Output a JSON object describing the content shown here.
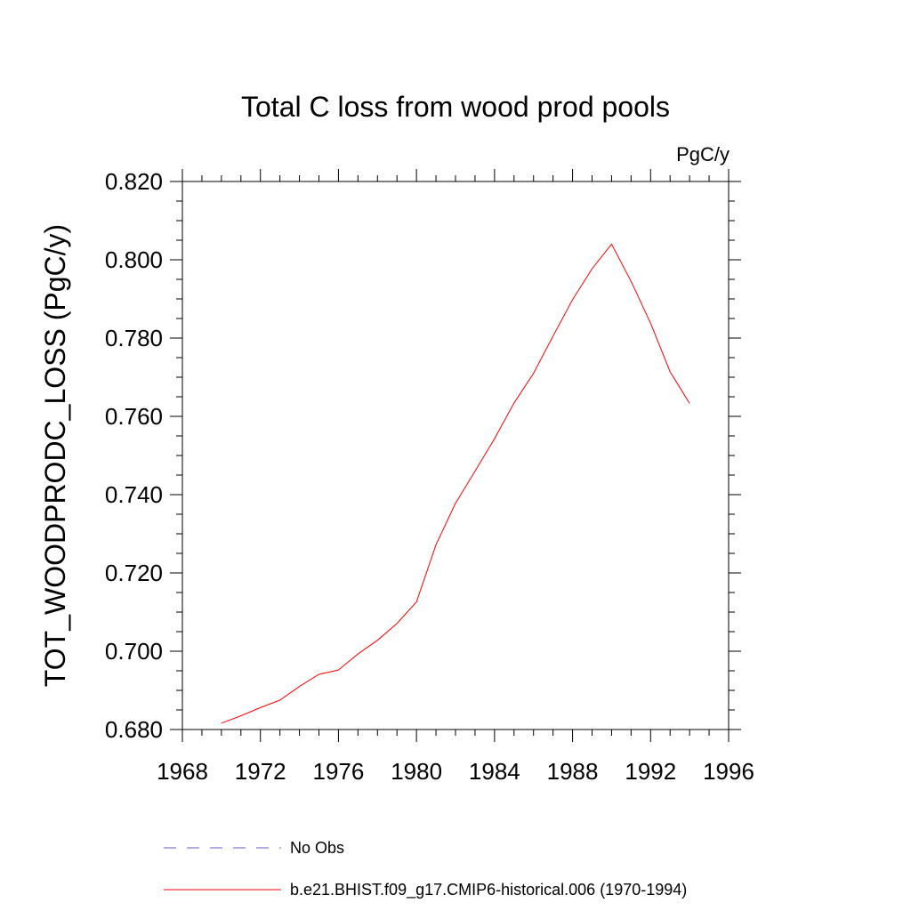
{
  "chart_data": {
    "type": "line",
    "title": "Total C loss from wood prod pools",
    "units": "PgC/y",
    "xlabel": "",
    "ylabel": "TOT_WOODPRODC_LOSS  (PgC/y)",
    "xlim": [
      1968,
      1996
    ],
    "ylim": [
      0.68,
      0.82
    ],
    "xticks": [
      1968,
      1972,
      1976,
      1980,
      1984,
      1988,
      1992,
      1996
    ],
    "xtick_labels": [
      "1968",
      "1972",
      "1976",
      "1980",
      "1984",
      "1988",
      "1992",
      "1996"
    ],
    "yticks": [
      0.68,
      0.7,
      0.72,
      0.74,
      0.76,
      0.78,
      0.8,
      0.82
    ],
    "ytick_labels": [
      "0.680",
      "0.700",
      "0.720",
      "0.740",
      "0.760",
      "0.780",
      "0.800",
      "0.820"
    ],
    "grid": false,
    "legend_position": "bottom",
    "series": [
      {
        "name": "No Obs",
        "color": "#6a5acd",
        "style": "dashed",
        "x": [],
        "y": []
      },
      {
        "name": "b.e21.BHIST.f09_g17.CMIP6-historical.006 (1970-1994)",
        "color": "#ff0000",
        "style": "solid",
        "x": [
          1970,
          1971,
          1972,
          1973,
          1974,
          1975,
          1976,
          1977,
          1978,
          1979,
          1980,
          1981,
          1982,
          1983,
          1984,
          1985,
          1986,
          1987,
          1988,
          1989,
          1990,
          1991,
          1992,
          1993,
          1994
        ],
        "y": [
          0.6816,
          0.6835,
          0.6856,
          0.6875,
          0.691,
          0.6941,
          0.6952,
          0.6993,
          0.7028,
          0.7071,
          0.7126,
          0.7272,
          0.7378,
          0.746,
          0.7543,
          0.7634,
          0.771,
          0.7805,
          0.7898,
          0.7977,
          0.804,
          0.7945,
          0.7838,
          0.7714,
          0.7633
        ]
      }
    ]
  }
}
